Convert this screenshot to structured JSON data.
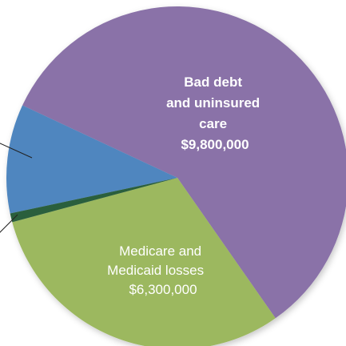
{
  "chart_data": {
    "type": "pie",
    "slices": [
      {
        "label_lines": [
          "Bad debt",
          "and uninsured",
          "care",
          "$9,800,000"
        ],
        "value": 9800000,
        "color": "#8a72a8"
      },
      {
        "label_lines": [
          "Medicare and",
          "Medicaid losses",
          "$6,300,000"
        ],
        "value": 6300000,
        "color": "#9cb85e"
      },
      {
        "label_lines": [],
        "value": null,
        "color": "#4f86bf"
      },
      {
        "label_lines": [],
        "value": null,
        "color": "#2b5f3e"
      }
    ]
  }
}
